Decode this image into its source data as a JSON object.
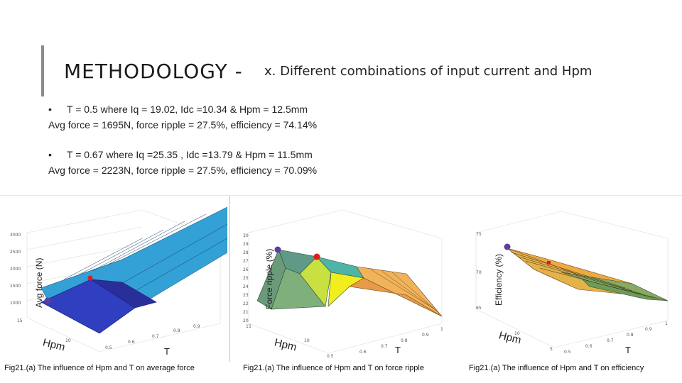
{
  "slide": {
    "title": "METHODOLOGY -",
    "subtitle": "x. Different combinations of input current and Hpm",
    "bullets": [
      {
        "line1": "T = 0.5 where Iq = 19.02, Idc =10.34  & Hpm = 12.5mm",
        "line2": "Avg force = 1695N, force ripple = 27.5%, efficiency = 74.14%"
      },
      {
        "line1": "T = 0.67 where Iq =25.35 , Idc =13.79  & Hpm = 11.5mm",
        "line2": "Avg force = 2223N, force ripple = 27.5%, efficiency = 70.09%"
      }
    ],
    "bullet_glyph": "•"
  },
  "figures": [
    {
      "ylabel": "Avg force (N)",
      "hpm_label": "Hpm",
      "t_label": "T",
      "caption": "Fig21.(a) The influence of Hpm and T on average force"
    },
    {
      "ylabel": "Force ripple (%)",
      "hpm_label": "Hpm",
      "t_label": "T",
      "caption": "Fig21.(a) The influence of Hpm and T on force ripple"
    },
    {
      "ylabel": "Efficiency (%)",
      "hpm_label": "Hpm",
      "t_label": "T",
      "caption": "Fig21.(a) The influence of Hpm and T on efficiency"
    }
  ],
  "chart_data": [
    {
      "type": "surface",
      "ylabel": "Avg force (N)",
      "zticks": [
        "1000",
        "1500",
        "2000",
        "2500",
        "3000"
      ],
      "hpm_ticks": [
        "10",
        "15"
      ],
      "t_ticks": [
        "0.5",
        "0.6",
        "0.7",
        "0.8",
        "0.9"
      ],
      "markers": [
        {
          "label": "",
          "color": "#5a3fa0"
        },
        {
          "label": "",
          "color": "#e01b1b"
        }
      ]
    },
    {
      "type": "surface",
      "ylabel": "Force ripple (%)",
      "zticks": [
        "20",
        "21",
        "22",
        "23",
        "24",
        "25",
        "26",
        "27",
        "28",
        "29",
        "30"
      ],
      "hpm_ticks": [
        "10",
        "15"
      ],
      "t_ticks": [
        "0.5",
        "0.6",
        "0.7",
        "0.8",
        "0.9",
        "1"
      ],
      "markers": [
        {
          "label": "",
          "color": "#5a3fa0"
        },
        {
          "label": "",
          "color": "#e01b1b"
        }
      ]
    },
    {
      "type": "surface",
      "ylabel": "Efficiency (%)",
      "zticks": [
        "65",
        "70",
        "75"
      ],
      "hpm_ticks": [
        "5",
        "10"
      ],
      "t_ticks": [
        "0.5",
        "0.6",
        "0.7",
        "0.8",
        "0.9",
        "1"
      ],
      "markers": [
        {
          "label": "",
          "color": "#5a3fa0"
        },
        {
          "label": "",
          "color": "#e01b1b"
        }
      ]
    }
  ]
}
